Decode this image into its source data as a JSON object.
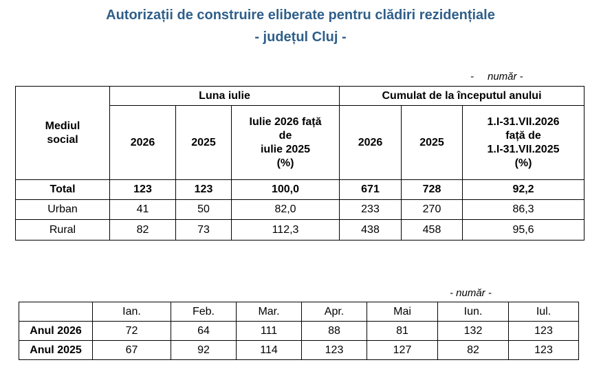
{
  "title": {
    "line1": "Autorizații de construire eliberate pentru clădiri rezidențiale",
    "line2": "- județul Cluj -"
  },
  "table1": {
    "unit_dash": "-",
    "unit_label": "număr -",
    "mediu_header": [
      "Mediul",
      "social"
    ],
    "group_luna": "Luna iulie",
    "group_cumulat": "Cumulat de la începutul anului",
    "col_2026": "2026",
    "col_2025": "2025",
    "col_luna_pct": [
      "Iulie 2026  față",
      "de",
      "iulie 2025",
      "(%)"
    ],
    "col_cum_pct": [
      "1.I-31.VII.2026",
      "față de",
      "1.I-31.VII.2025",
      "(%)"
    ],
    "rows": [
      {
        "label": "Total",
        "values": [
          "123",
          "123",
          "100,0",
          "671",
          "728",
          "92,2"
        ]
      },
      {
        "label": "Urban",
        "values": [
          "41",
          "50",
          "82,0",
          "233",
          "270",
          "86,3"
        ]
      },
      {
        "label": "Rural",
        "values": [
          "82",
          "73",
          "112,3",
          "438",
          "458",
          "95,6"
        ]
      }
    ]
  },
  "table2": {
    "unit_label": "- număr -",
    "months": [
      "Ian.",
      "Feb.",
      "Mar.",
      "Apr.",
      "Mai",
      "Iun.",
      "Iul."
    ],
    "rows": [
      {
        "label": "Anul 2026",
        "values": [
          "72",
          "64",
          "111",
          "88",
          "81",
          "132",
          "123"
        ]
      },
      {
        "label": "Anul 2025",
        "values": [
          "67",
          "92",
          "114",
          "123",
          "127",
          "82",
          "123"
        ]
      }
    ]
  }
}
